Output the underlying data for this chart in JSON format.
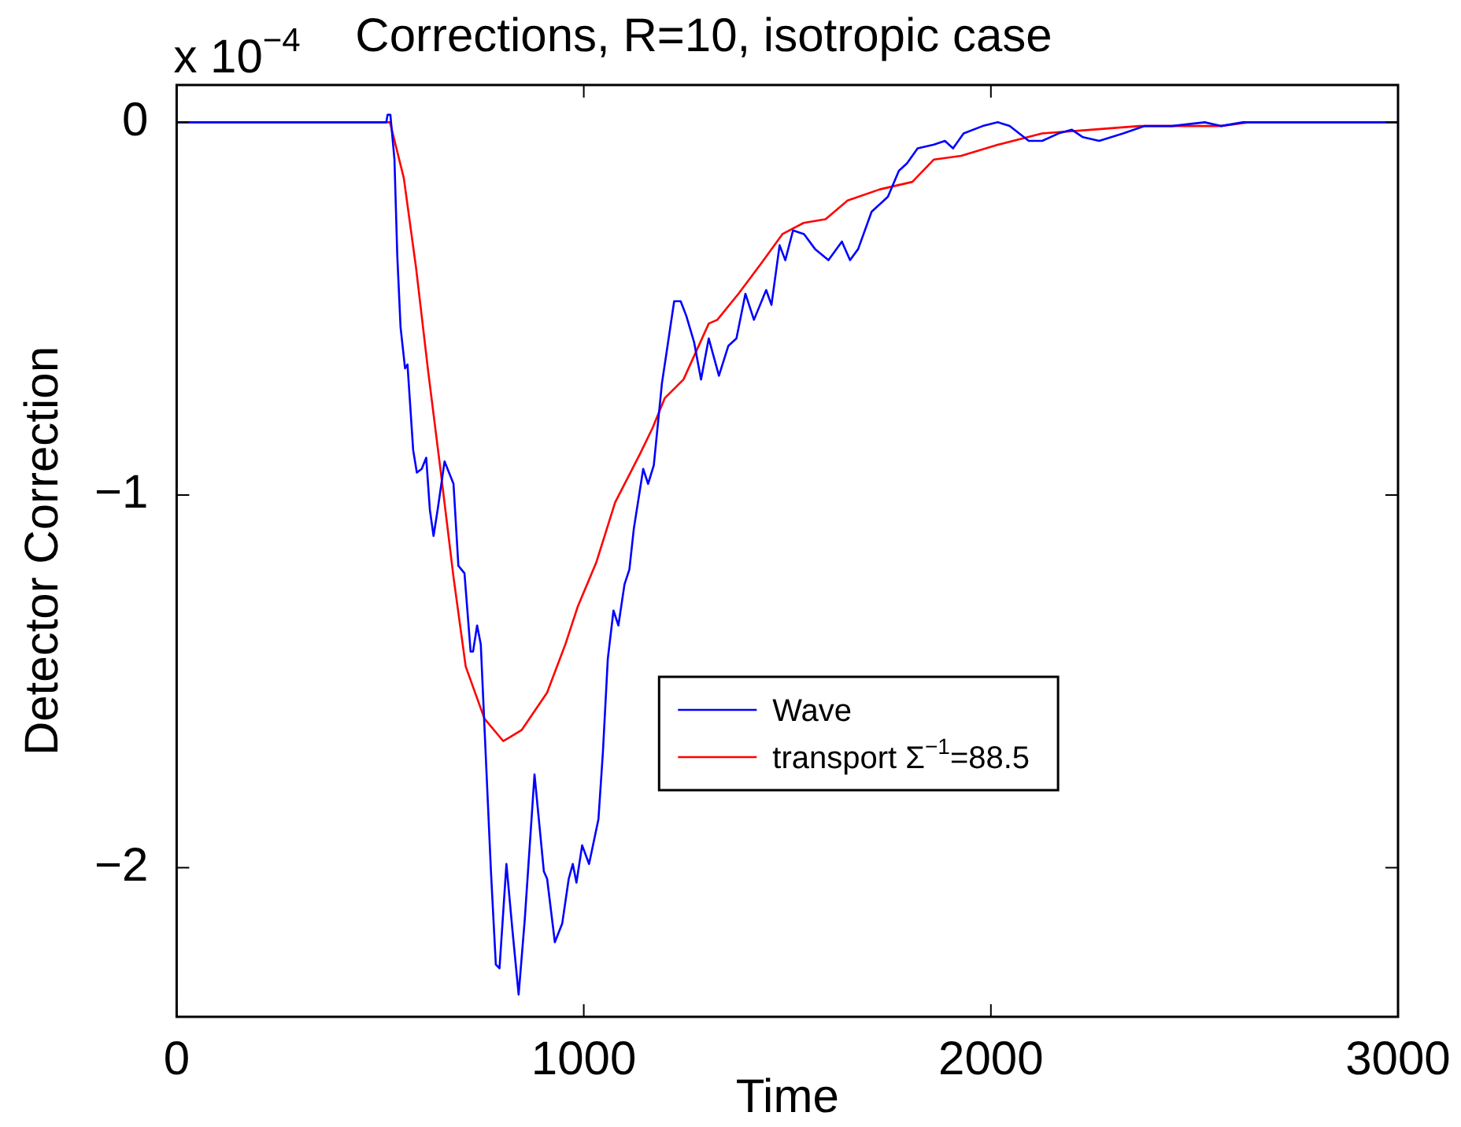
{
  "chart_data": {
    "type": "line",
    "title": "Corrections, R=10, isotropic case",
    "xlabel": "Time",
    "ylabel": "Detector Correction",
    "annotations": [
      "x 10$^{−4}$"
    ],
    "xlim": [
      0,
      3000
    ],
    "xticks": [
      0,
      1000,
      2000,
      3000
    ],
    "ylim": [
      -2.4,
      0.1
    ],
    "yticks": [
      -2,
      -1,
      0
    ],
    "grid": false,
    "legend": "right",
    "marker": "none",
    "line_style": "solid",
    "series": [
      {
        "name": "Wave",
        "color": "#0000ff",
        "x": [
          0,
          515,
          518,
          525,
          535,
          542,
          550,
          561,
          567,
          581,
          590,
          602,
          613,
          622,
          631,
          641,
          658,
          680,
          692,
          707,
          722,
          728,
          738,
          747,
          756,
          772,
          784,
          793,
          810,
          825,
          840,
          855,
          879,
          902,
          910,
          929,
          947,
          963,
          973,
          982,
          996,
          1013,
          1036,
          1047,
          1059,
          1073,
          1085,
          1100,
          1112,
          1123,
          1146,
          1158,
          1172,
          1192,
          1203,
          1222,
          1238,
          1252,
          1271,
          1288,
          1307,
          1332,
          1355,
          1375,
          1397,
          1418,
          1448,
          1461,
          1481,
          1495,
          1514,
          1541,
          1568,
          1601,
          1634,
          1654,
          1674,
          1707,
          1747,
          1774,
          1794,
          1820,
          1860,
          1887,
          1907,
          1933,
          1980,
          2017,
          2046,
          2093,
          2126,
          2166,
          2199,
          2226,
          2266,
          2325,
          2378,
          2445,
          2525,
          2565,
          2619,
          2737,
          2857,
          3000
        ],
        "values": [
          0,
          0,
          0.02,
          0.02,
          -0.1,
          -0.36,
          -0.55,
          -0.66,
          -0.65,
          -0.88,
          -0.94,
          -0.93,
          -0.9,
          -1.04,
          -1.11,
          -1.04,
          -0.91,
          -0.97,
          -1.19,
          -1.21,
          -1.42,
          -1.42,
          -1.35,
          -1.4,
          -1.62,
          -2.01,
          -2.26,
          -2.27,
          -1.99,
          -2.17,
          -2.34,
          -2.14,
          -1.75,
          -2.01,
          -2.03,
          -2.2,
          -2.15,
          -2.03,
          -1.99,
          -2.04,
          -1.94,
          -1.99,
          -1.87,
          -1.69,
          -1.44,
          -1.31,
          -1.35,
          -1.24,
          -1.2,
          -1.09,
          -0.93,
          -0.97,
          -0.92,
          -0.7,
          -0.62,
          -0.48,
          -0.48,
          -0.52,
          -0.59,
          -0.69,
          -0.58,
          -0.68,
          -0.6,
          -0.58,
          -0.46,
          -0.53,
          -0.45,
          -0.49,
          -0.33,
          -0.37,
          -0.29,
          -0.3,
          -0.34,
          -0.37,
          -0.32,
          -0.37,
          -0.34,
          -0.24,
          -0.2,
          -0.13,
          -0.11,
          -0.07,
          -0.06,
          -0.05,
          -0.07,
          -0.03,
          -0.01,
          0,
          -0.01,
          -0.05,
          -0.05,
          -0.03,
          -0.02,
          -0.04,
          -0.05,
          -0.03,
          -0.01,
          -0.01,
          0,
          -0.01,
          0,
          0,
          0,
          0
        ]
      },
      {
        "name": "transport Σ$^{−1}$=88.5",
        "color": "#ff0000",
        "x": [
          0,
          524,
          558,
          588,
          618,
          649,
          680,
          710,
          756,
          802,
          818,
          848,
          910,
          955,
          985,
          1031,
          1077,
          1138,
          1169,
          1199,
          1245,
          1307,
          1328,
          1380,
          1435,
          1488,
          1540,
          1594,
          1648,
          1727,
          1807,
          1860,
          1927,
          2018,
          2126,
          2246,
          2365,
          2565,
          2633,
          3000
        ],
        "values": [
          0,
          0,
          -0.15,
          -0.39,
          -0.67,
          -0.94,
          -1.22,
          -1.46,
          -1.6,
          -1.66,
          -1.65,
          -1.63,
          -1.53,
          -1.4,
          -1.3,
          -1.18,
          -1.02,
          -0.89,
          -0.82,
          -0.74,
          -0.69,
          -0.54,
          -0.53,
          -0.46,
          -0.38,
          -0.3,
          -0.27,
          -0.26,
          -0.21,
          -0.18,
          -0.16,
          -0.1,
          -0.09,
          -0.06,
          -0.03,
          -0.02,
          -0.01,
          -0.01,
          0,
          0
        ]
      }
    ]
  }
}
